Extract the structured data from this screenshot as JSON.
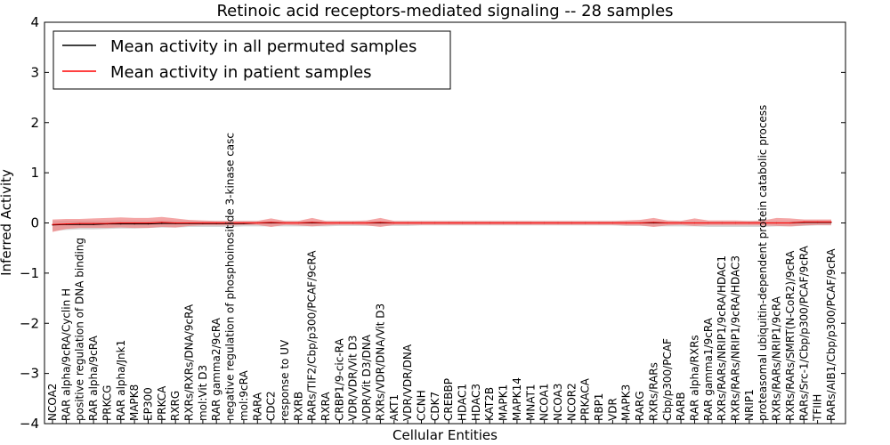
{
  "chart_data": {
    "type": "line",
    "title": "Retinoic acid receptors-mediated signaling -- 28 samples",
    "xlabel": "Cellular Entities",
    "ylabel": "Inferred Activity",
    "ylim": [
      -4,
      4
    ],
    "yticks": [
      -4,
      -3,
      -2,
      -1,
      0,
      1,
      2,
      3,
      4
    ],
    "ytick_labels": [
      "−4",
      "−3",
      "−2",
      "−1",
      "0",
      "1",
      "2",
      "3",
      "4"
    ],
    "grid": false,
    "legend": {
      "placement": "top-left",
      "entries": [
        {
          "label": "Mean activity in all permuted samples",
          "color": "#000000"
        },
        {
          "label": "Mean activity in patient samples",
          "color": "#ff0000"
        }
      ]
    },
    "categories": [
      "NCOA2",
      "RAR alpha/9cRA/Cyclin H",
      "positive regulation of DNA binding",
      "RAR alpha/9cRA",
      "PRKCG",
      "RAR alpha/Jnk1",
      "MAPK8",
      "EP300",
      "PRKCA",
      "RXRG",
      "RXRs/RXRs/DNA/9cRA",
      "mol:Vit D3",
      "RAR gamma2/9cRA",
      "negative regulation of phosphoinositide 3-kinase casc",
      "mol:9cRA",
      "RARA",
      "CDC2",
      "response to UV",
      "RXRB",
      "RARs/TIF2/Cbp/p300/PCAF/9cRA",
      "RXRA",
      "CRBP1/9-cic-RA",
      "VDR/VDR/Vit D3",
      "VDR/Vit D3/DNA",
      "RXRs/VDR/DNA/Vit D3",
      "AKT1",
      "VDR/VDR/DNA",
      "CCNH",
      "CDK7",
      "CREBBP",
      "HDAC1",
      "HDAC3",
      "KAT2B",
      "MAPK1",
      "MAPK14",
      "MNAT1",
      "NCOA1",
      "NCOA3",
      "NCOR2",
      "PRKACA",
      "RBP1",
      "VDR",
      "MAPK3",
      "RARG",
      "RXRs/RARs",
      "Cbp/p300/PCAF",
      "RARB",
      "RAR alpha/RXRs",
      "RAR gamma1/9cRA",
      "RXRs/RARs/NRIP1/9cRA/HDAC1",
      "RXRs/RARs/NRIP1/9cRA/HDAC3",
      "NRIP1",
      "proteasomal ubiquitin-dependent protein catabolic process",
      "RXRs/RARs/NRIP1/9cRA",
      "RXRs/RARs/SMRT(N-CoR2)/9cRA",
      "RARs/Src-1/Cbp/p300/PCAF/9cRA",
      "TFIIH",
      "RARs/AIB1/Cbp/p300/PCAF/9cRA"
    ],
    "series": [
      {
        "name": "Mean activity in all permuted samples",
        "color": "#000000",
        "band_color": "#b0b0b0",
        "values": [
          -0.04,
          -0.03,
          -0.03,
          -0.03,
          -0.02,
          -0.02,
          -0.02,
          -0.02,
          -0.01,
          -0.01,
          -0.01,
          -0.01,
          -0.01,
          -0.01,
          -0.01,
          0.0,
          0.0,
          0.0,
          0.0,
          0.0,
          0.0,
          0.0,
          0.0,
          0.0,
          0.0,
          0.0,
          0.0,
          0.0,
          0.0,
          0.0,
          0.0,
          0.0,
          0.0,
          0.0,
          0.0,
          0.0,
          0.0,
          0.0,
          0.0,
          0.0,
          0.0,
          0.0,
          0.0,
          0.0,
          0.0,
          0.0,
          0.0,
          0.0,
          0.0,
          0.0,
          0.0,
          0.0,
          0.0,
          0.0,
          0.0,
          0.01,
          0.01,
          0.01
        ],
        "lower": [
          -0.16,
          -0.14,
          -0.13,
          -0.13,
          -0.12,
          -0.11,
          -0.11,
          -0.1,
          -0.09,
          -0.09,
          -0.08,
          -0.08,
          -0.08,
          -0.08,
          -0.07,
          -0.07,
          -0.07,
          -0.07,
          -0.07,
          -0.07,
          -0.07,
          -0.06,
          -0.06,
          -0.06,
          -0.06,
          -0.06,
          -0.06,
          -0.05,
          -0.05,
          -0.05,
          -0.05,
          -0.05,
          -0.05,
          -0.05,
          -0.05,
          -0.05,
          -0.05,
          -0.05,
          -0.05,
          -0.05,
          -0.05,
          -0.05,
          -0.06,
          -0.06,
          -0.07,
          -0.07,
          -0.07,
          -0.07,
          -0.08,
          -0.08,
          -0.08,
          -0.08,
          -0.08,
          -0.07,
          -0.07,
          -0.06,
          -0.05,
          -0.05
        ],
        "upper": [
          0.04,
          0.05,
          0.05,
          0.05,
          0.05,
          0.05,
          0.05,
          0.05,
          0.05,
          0.05,
          0.05,
          0.04,
          0.04,
          0.04,
          0.04,
          0.04,
          0.04,
          0.04,
          0.04,
          0.04,
          0.04,
          0.04,
          0.04,
          0.04,
          0.04,
          0.04,
          0.04,
          0.04,
          0.04,
          0.04,
          0.04,
          0.04,
          0.04,
          0.04,
          0.04,
          0.04,
          0.04,
          0.04,
          0.04,
          0.04,
          0.04,
          0.04,
          0.04,
          0.04,
          0.04,
          0.04,
          0.04,
          0.04,
          0.04,
          0.04,
          0.04,
          0.04,
          0.04,
          0.04,
          0.04,
          0.05,
          0.05,
          0.05
        ]
      },
      {
        "name": "Mean activity in patient samples",
        "color": "#ff0000",
        "band_color": "#f08080",
        "values": [
          -0.03,
          -0.02,
          -0.01,
          -0.01,
          -0.01,
          0.0,
          0.0,
          0.0,
          0.01,
          0.0,
          0.0,
          0.0,
          0.0,
          0.0,
          0.0,
          0.0,
          0.01,
          0.0,
          0.0,
          0.01,
          0.0,
          0.0,
          0.0,
          0.0,
          0.01,
          0.0,
          0.0,
          0.0,
          0.0,
          0.0,
          0.0,
          0.0,
          0.0,
          0.0,
          0.0,
          0.0,
          0.0,
          0.0,
          0.0,
          0.0,
          0.0,
          0.0,
          0.0,
          0.0,
          0.01,
          0.0,
          0.0,
          0.0,
          0.0,
          0.0,
          0.0,
          0.0,
          0.0,
          0.0,
          0.0,
          0.02,
          0.02,
          0.02
        ],
        "lower": [
          -0.18,
          -0.12,
          -0.1,
          -0.1,
          -0.1,
          -0.09,
          -0.1,
          -0.1,
          -0.08,
          -0.09,
          -0.06,
          -0.05,
          -0.05,
          -0.05,
          -0.04,
          -0.04,
          -0.08,
          -0.04,
          -0.05,
          -0.07,
          -0.05,
          -0.04,
          -0.04,
          -0.05,
          -0.08,
          -0.04,
          -0.04,
          -0.04,
          -0.04,
          -0.04,
          -0.04,
          -0.04,
          -0.04,
          -0.04,
          -0.04,
          -0.04,
          -0.04,
          -0.04,
          -0.04,
          -0.04,
          -0.04,
          -0.04,
          -0.05,
          -0.05,
          -0.08,
          -0.05,
          -0.04,
          -0.06,
          -0.05,
          -0.05,
          -0.05,
          -0.05,
          -0.05,
          -0.06,
          -0.07,
          -0.05,
          -0.04,
          -0.04
        ],
        "upper": [
          0.07,
          0.08,
          0.08,
          0.09,
          0.1,
          0.11,
          0.1,
          0.1,
          0.12,
          0.09,
          0.06,
          0.05,
          0.04,
          0.04,
          0.04,
          0.04,
          0.09,
          0.04,
          0.04,
          0.1,
          0.04,
          0.04,
          0.04,
          0.05,
          0.1,
          0.04,
          0.04,
          0.04,
          0.04,
          0.04,
          0.04,
          0.04,
          0.04,
          0.04,
          0.04,
          0.04,
          0.04,
          0.04,
          0.04,
          0.04,
          0.04,
          0.04,
          0.05,
          0.06,
          0.1,
          0.05,
          0.04,
          0.09,
          0.05,
          0.05,
          0.05,
          0.04,
          0.05,
          0.1,
          0.09,
          0.07,
          0.07,
          0.07
        ]
      }
    ]
  }
}
